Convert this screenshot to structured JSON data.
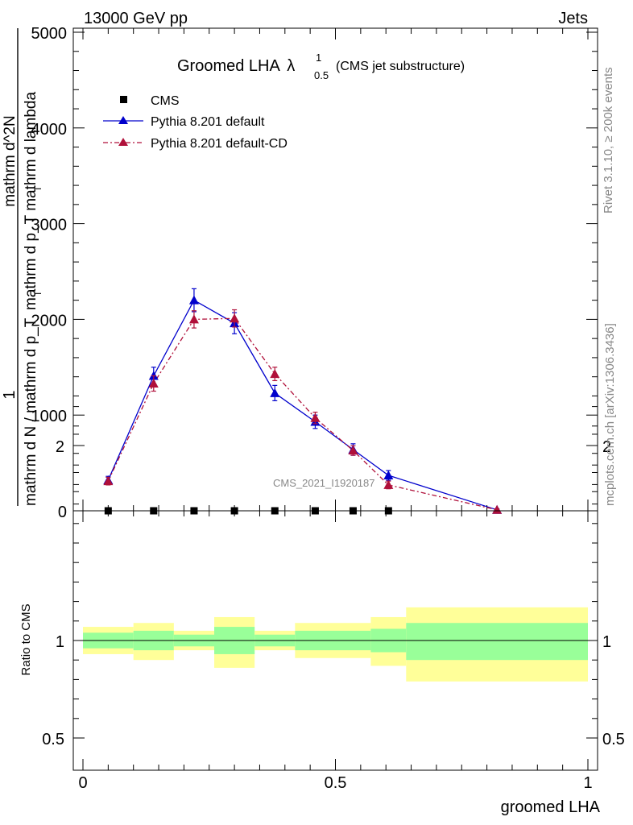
{
  "header": {
    "left": "13000 GeV pp",
    "right": "Jets"
  },
  "side_labels": {
    "rivet": "Rivet 3.1.10, ≥ 200k events",
    "mcplots": "mcplots.cern.ch [arXiv:1306.3436]"
  },
  "watermark": "CMS_2021_I1920187",
  "colors": {
    "data": "#000000",
    "pythia_default": "#0000cc",
    "pythia_cd": "#b0103a",
    "band_inner": "#99ff99",
    "band_outer": "#ffff99"
  },
  "chart_data": [
    {
      "type": "line",
      "title_main": "Groomed LHA",
      "title_lambda": "λ",
      "title_sup": "1",
      "title_sub": "0.5",
      "title_note": "(CMS jet substructure)",
      "ylabel_numerator": "1",
      "ylabel_denominator": "mathrm d N / mathrm d p_T",
      "ylabel_sub": "T",
      "ylabel2_numerator": "mathrm d^2N",
      "ylabel2_denominator": "mathrm d p_T mathrm d lambda",
      "ylabel2_sub": "T",
      "xlim": [
        0,
        1
      ],
      "ylim": [
        0,
        5000
      ],
      "yticks": [
        0,
        1000,
        2000,
        3000,
        4000,
        5000
      ],
      "ytick_labels": [
        "0",
        "1000",
        "2000",
        "3000",
        "4000",
        "5000"
      ],
      "legend_position": "top-left",
      "series": [
        {
          "name": "CMS",
          "marker": "square",
          "x": [
            0.05,
            0.14,
            0.22,
            0.3,
            0.38,
            0.46,
            0.535,
            0.605
          ],
          "y": [
            0,
            0,
            0,
            0,
            0,
            0,
            0,
            0
          ]
        },
        {
          "name": "Pythia 8.201 default",
          "marker": "triangle",
          "line": "solid",
          "x": [
            0.05,
            0.14,
            0.22,
            0.3,
            0.38,
            0.46,
            0.535,
            0.605,
            0.82
          ],
          "y": [
            320,
            1410,
            2200,
            1960,
            1230,
            930,
            640,
            370,
            10
          ],
          "err": [
            40,
            90,
            120,
            110,
            80,
            70,
            60,
            50,
            10
          ]
        },
        {
          "name": "Pythia 8.201 default-CD",
          "marker": "triangle",
          "line": "dashdot",
          "x": [
            0.05,
            0.14,
            0.22,
            0.3,
            0.38,
            0.46,
            0.535,
            0.605,
            0.82
          ],
          "y": [
            310,
            1330,
            2000,
            2010,
            1430,
            970,
            630,
            270,
            10
          ],
          "err": [
            40,
            80,
            90,
            90,
            70,
            60,
            50,
            40,
            10
          ]
        }
      ]
    },
    {
      "type": "area",
      "ylabel": "Ratio to CMS",
      "xlabel": "groomed LHA",
      "xlim": [
        0,
        1
      ],
      "ylim": [
        0.3,
        2.3
      ],
      "yticks": [
        0.5,
        1,
        2
      ],
      "ytick_labels": [
        "0.5",
        "1",
        "2"
      ],
      "xticks": [
        0,
        0.5,
        1
      ],
      "xtick_labels": [
        "0",
        "0.5",
        "1"
      ],
      "reference": 1,
      "bands": [
        {
          "x0": 0.0,
          "x1": 0.1,
          "inner_lo": 0.96,
          "inner_hi": 1.04,
          "outer_lo": 0.93,
          "outer_hi": 1.07
        },
        {
          "x0": 0.1,
          "x1": 0.18,
          "inner_lo": 0.95,
          "inner_hi": 1.05,
          "outer_lo": 0.9,
          "outer_hi": 1.09
        },
        {
          "x0": 0.18,
          "x1": 0.26,
          "inner_lo": 0.97,
          "inner_hi": 1.03,
          "outer_lo": 0.95,
          "outer_hi": 1.05
        },
        {
          "x0": 0.26,
          "x1": 0.34,
          "inner_lo": 0.93,
          "inner_hi": 1.07,
          "outer_lo": 0.86,
          "outer_hi": 1.12
        },
        {
          "x0": 0.34,
          "x1": 0.42,
          "inner_lo": 0.97,
          "inner_hi": 1.03,
          "outer_lo": 0.95,
          "outer_hi": 1.05
        },
        {
          "x0": 0.42,
          "x1": 0.5,
          "inner_lo": 0.95,
          "inner_hi": 1.05,
          "outer_lo": 0.91,
          "outer_hi": 1.09
        },
        {
          "x0": 0.5,
          "x1": 0.57,
          "inner_lo": 0.95,
          "inner_hi": 1.05,
          "outer_lo": 0.91,
          "outer_hi": 1.09
        },
        {
          "x0": 0.57,
          "x1": 0.64,
          "inner_lo": 0.94,
          "inner_hi": 1.06,
          "outer_lo": 0.87,
          "outer_hi": 1.12
        },
        {
          "x0": 0.64,
          "x1": 1.0,
          "inner_lo": 0.9,
          "inner_hi": 1.09,
          "outer_lo": 0.79,
          "outer_hi": 1.17
        }
      ]
    }
  ]
}
